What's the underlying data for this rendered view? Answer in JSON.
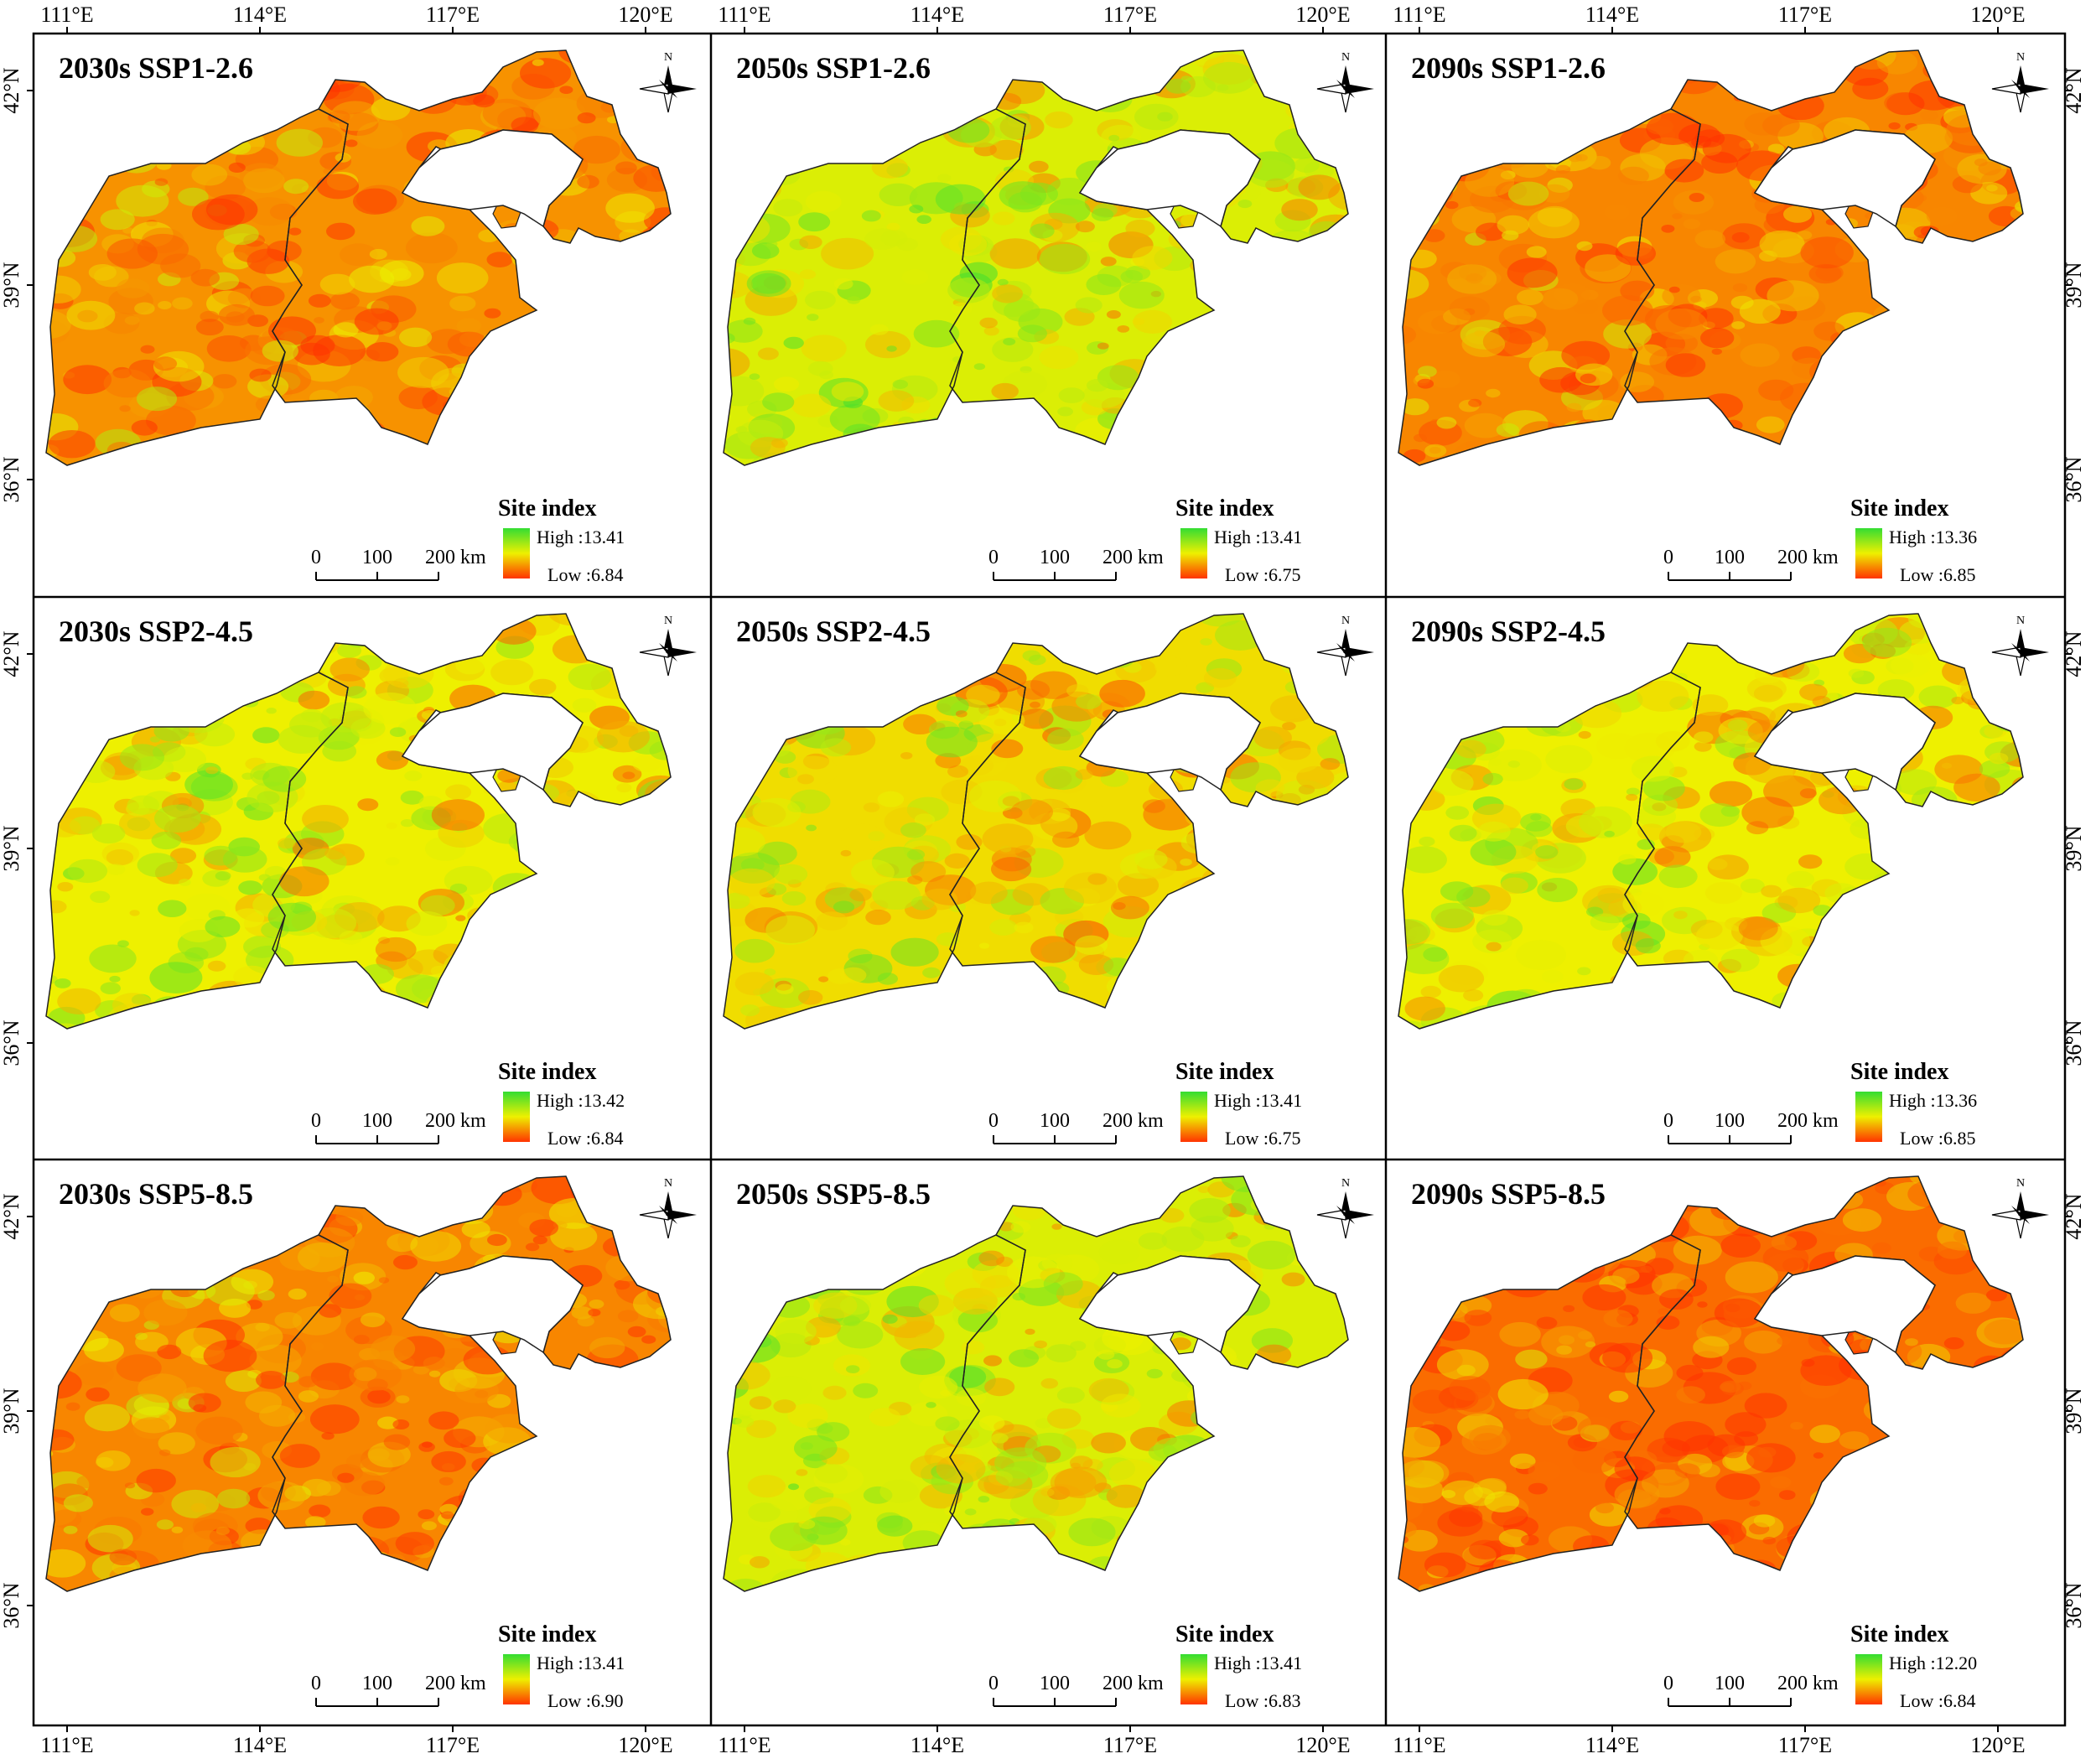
{
  "axes": {
    "lon_labels": [
      "111°E",
      "114°E",
      "117°E",
      "120°E"
    ],
    "lat_labels": [
      "42°N",
      "39°N",
      "36°N"
    ]
  },
  "legend": {
    "title": "Site index",
    "high_prefix": "High :",
    "low_prefix": "Low :"
  },
  "scalebar": {
    "labels": [
      "0",
      "100",
      "200 km"
    ]
  },
  "compass": {
    "north": "N"
  },
  "colors": {
    "high": "#33dd33",
    "mid": "#eef000",
    "low": "#ff3300",
    "frame": "#000000"
  },
  "panels": [
    {
      "title": "2030s SSP1-2.6",
      "high": "13.41",
      "low": "6.84",
      "tone": 0.25
    },
    {
      "title": "2050s SSP1-2.6",
      "high": "13.41",
      "low": "6.75",
      "tone": 0.55
    },
    {
      "title": "2090s SSP1-2.6",
      "high": "13.36",
      "low": "6.85",
      "tone": 0.22
    },
    {
      "title": "2030s SSP2-4.5",
      "high": "13.42",
      "low": "6.84",
      "tone": 0.5
    },
    {
      "title": "2050s SSP2-4.5",
      "high": "13.41",
      "low": "6.75",
      "tone": 0.45
    },
    {
      "title": "2090s SSP2-4.5",
      "high": "13.36",
      "low": "6.85",
      "tone": 0.5
    },
    {
      "title": "2030s SSP5-8.5",
      "high": "13.41",
      "low": "6.90",
      "tone": 0.22
    },
    {
      "title": "2050s SSP5-8.5",
      "high": "13.41",
      "low": "6.83",
      "tone": 0.55
    },
    {
      "title": "2090s SSP5-8.5",
      "high": "12.20",
      "low": "6.84",
      "tone": 0.15
    }
  ]
}
